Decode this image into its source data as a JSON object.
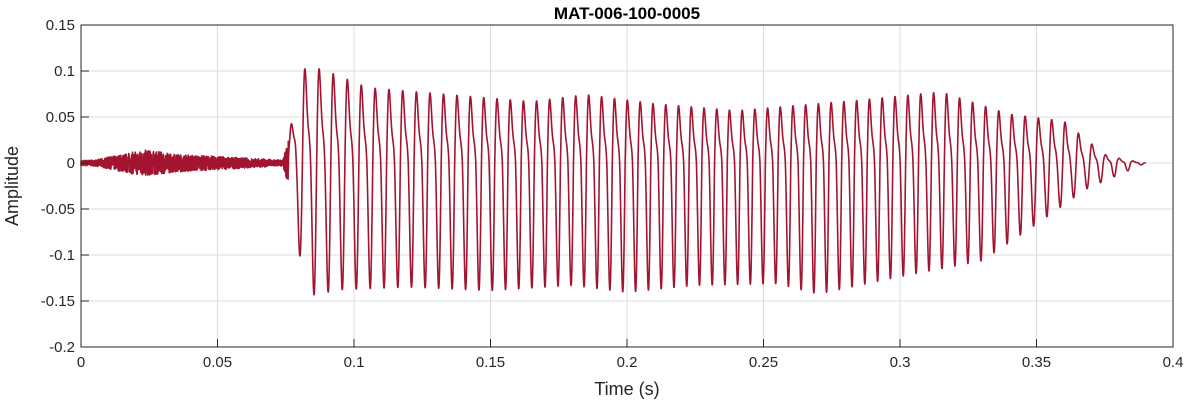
{
  "chart_data": {
    "type": "line",
    "title": "MAT-006-100-0005",
    "xlabel": "Time (s)",
    "ylabel": "Amplitude",
    "xlim": [
      0,
      0.4
    ],
    "ylim": [
      -0.2,
      0.15
    ],
    "x_ticks": [
      "0",
      "0.05",
      "0.1",
      "0.15",
      "0.2",
      "0.25",
      "0.3",
      "0.35",
      "0.4"
    ],
    "y_ticks": [
      "0.15",
      "0.1",
      "0.05",
      "0",
      "-0.05",
      "-0.1",
      "-0.15",
      "-0.2"
    ],
    "grid": true,
    "line_color": "#A2142F",
    "series": [
      {
        "values": [
          {
            "x": 0.0,
            "y": 0.0
          },
          {
            "x": 0.01,
            "y": 0.008
          },
          {
            "x": 0.02,
            "y": -0.01
          },
          {
            "x": 0.023,
            "y": 0.018
          },
          {
            "x": 0.03,
            "y": -0.012
          },
          {
            "x": 0.035,
            "y": 0.012
          },
          {
            "x": 0.045,
            "y": -0.008
          },
          {
            "x": 0.055,
            "y": 0.008
          },
          {
            "x": 0.065,
            "y": -0.006
          },
          {
            "x": 0.074,
            "y": 0.004
          },
          {
            "x": 0.0765,
            "y": 0.04
          },
          {
            "x": 0.0775,
            "y": -0.07
          },
          {
            "x": 0.079,
            "y": 0.135
          },
          {
            "x": 0.0835,
            "y": -0.152
          },
          {
            "x": 0.088,
            "y": 0.135
          },
          {
            "x": 0.095,
            "y": -0.145
          },
          {
            "x": 0.105,
            "y": 0.108
          },
          {
            "x": 0.12,
            "y": -0.142
          },
          {
            "x": 0.135,
            "y": 0.098
          },
          {
            "x": 0.15,
            "y": -0.146
          },
          {
            "x": 0.165,
            "y": 0.088
          },
          {
            "x": 0.18,
            "y": -0.14
          },
          {
            "x": 0.185,
            "y": 0.098
          },
          {
            "x": 0.2,
            "y": -0.148
          },
          {
            "x": 0.21,
            "y": 0.085
          },
          {
            "x": 0.225,
            "y": -0.14
          },
          {
            "x": 0.24,
            "y": 0.075
          },
          {
            "x": 0.255,
            "y": -0.138
          },
          {
            "x": 0.27,
            "y": -0.15
          },
          {
            "x": 0.285,
            "y": 0.09
          },
          {
            "x": 0.3,
            "y": -0.13
          },
          {
            "x": 0.315,
            "y": 0.102
          },
          {
            "x": 0.33,
            "y": -0.112
          },
          {
            "x": 0.34,
            "y": 0.07
          },
          {
            "x": 0.35,
            "y": -0.07
          },
          {
            "x": 0.36,
            "y": 0.06
          },
          {
            "x": 0.368,
            "y": -0.03
          },
          {
            "x": 0.375,
            "y": 0.012
          },
          {
            "x": 0.382,
            "y": 0.005
          },
          {
            "x": 0.39,
            "y": 0.0
          }
        ]
      }
    ]
  }
}
